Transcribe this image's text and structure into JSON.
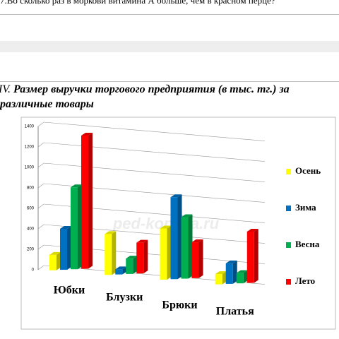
{
  "question": "7.Во сколько раз в моркови витамина А больше, чем в красном перце?",
  "heading": {
    "number": "IV.",
    "line1": "Размер выручки торгового предприятия (в тыс. тг.) за",
    "line2": "различные товары"
  },
  "watermark": "ped-kopilka.ru",
  "chart_data": {
    "type": "bar3d",
    "categories": [
      "Юбки",
      "Блузки",
      "Брюки",
      "Платья"
    ],
    "series": [
      {
        "name": "Осень",
        "color": "#ffff00",
        "values": [
          150,
          400,
          500,
          100
        ]
      },
      {
        "name": "Зима",
        "color": "#0070c0",
        "values": [
          400,
          50,
          800,
          200
        ]
      },
      {
        "name": "Весна",
        "color": "#00b050",
        "values": [
          800,
          150,
          600,
          100
        ]
      },
      {
        "name": "Лето",
        "color": "#ff0000",
        "values": [
          1300,
          300,
          350,
          500
        ]
      }
    ],
    "ylim": [
      0,
      1400
    ],
    "yticks": [
      0,
      200,
      400,
      600,
      800,
      1000,
      1200,
      1400
    ],
    "grid": true,
    "legend": "right"
  }
}
